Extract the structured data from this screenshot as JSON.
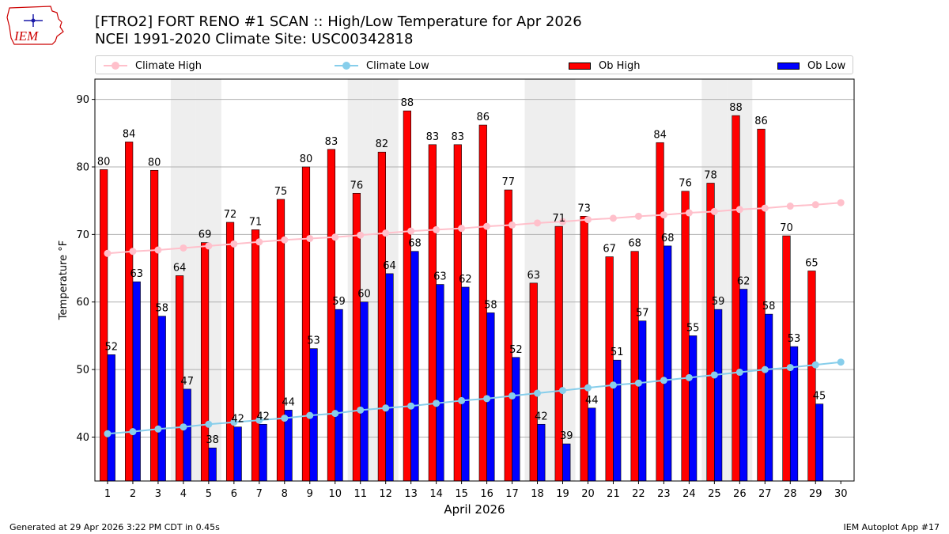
{
  "header": {
    "title_line1": "[FTRO2] FORT RENO #1 SCAN :: High/Low Temperature for Apr 2026",
    "title_line2": "NCEI 1991-2020 Climate Site: USC00342818",
    "logo_text": "IEM"
  },
  "footer": {
    "left": "Generated at 29 Apr 2026 3:22 PM CDT in 0.45s",
    "right": "IEM Autoplot App #17"
  },
  "colors": {
    "ob_high": "#ff0000",
    "ob_low": "#0000ff",
    "climate_high": "#ffc0cb",
    "climate_low": "#87ceeb",
    "weekend_shade": "#eeeeee",
    "grid": "#b0b0b0",
    "logo": "#cc0000"
  },
  "chart_data": {
    "type": "bar",
    "xlabel": "April 2026",
    "ylabel": "Temperature °F",
    "ylim": [
      33.5,
      93
    ],
    "yticks": [
      40,
      50,
      60,
      70,
      80,
      90
    ],
    "grid": "horizontal",
    "legend_position": "top",
    "weekend_shading_days": [
      4,
      5,
      11,
      12,
      18,
      19,
      25,
      26
    ],
    "categories": [
      "1",
      "2",
      "3",
      "4",
      "5",
      "6",
      "7",
      "8",
      "9",
      "10",
      "11",
      "12",
      "13",
      "14",
      "15",
      "16",
      "17",
      "18",
      "19",
      "20",
      "21",
      "22",
      "23",
      "24",
      "25",
      "26",
      "27",
      "28",
      "29",
      "30"
    ],
    "series": [
      {
        "name": "Climate High",
        "kind": "line",
        "values": [
          67.2,
          67.5,
          67.7,
          68.0,
          68.3,
          68.6,
          68.9,
          69.2,
          69.4,
          69.6,
          69.9,
          70.2,
          70.5,
          70.7,
          70.9,
          71.2,
          71.4,
          71.7,
          71.9,
          72.2,
          72.4,
          72.7,
          72.9,
          73.2,
          73.4,
          73.7,
          73.9,
          74.2,
          74.4,
          74.7
        ]
      },
      {
        "name": "Climate Low",
        "kind": "line",
        "values": [
          40.5,
          40.8,
          41.2,
          41.5,
          41.9,
          42.2,
          42.5,
          42.8,
          43.2,
          43.5,
          44.0,
          44.3,
          44.6,
          45.0,
          45.4,
          45.7,
          46.1,
          46.5,
          46.9,
          47.3,
          47.7,
          48.0,
          48.4,
          48.8,
          49.2,
          49.6,
          50.0,
          50.3,
          50.7,
          51.1
        ]
      },
      {
        "name": "Ob High",
        "kind": "bar",
        "values": [
          80,
          84,
          80,
          64,
          69,
          72,
          71,
          75,
          80,
          83,
          76,
          82,
          88,
          83,
          83,
          86,
          77,
          63,
          71,
          73,
          67,
          68,
          84,
          76,
          78,
          88,
          86,
          70,
          65,
          null
        ],
        "bar_values": [
          79.6,
          83.7,
          79.5,
          63.9,
          68.8,
          71.8,
          70.7,
          75.2,
          80.0,
          82.6,
          76.1,
          82.2,
          88.3,
          83.3,
          83.3,
          86.2,
          76.6,
          62.8,
          71.2,
          72.7,
          66.7,
          67.5,
          83.6,
          76.4,
          77.6,
          87.6,
          85.6,
          69.8,
          64.6,
          null
        ]
      },
      {
        "name": "Ob Low",
        "kind": "bar",
        "values": [
          52,
          63,
          58,
          47,
          38,
          42,
          42,
          44,
          53,
          59,
          60,
          64,
          68,
          63,
          62,
          58,
          52,
          42,
          39,
          44,
          51,
          57,
          68,
          55,
          59,
          62,
          58,
          53,
          45,
          null
        ],
        "bar_values": [
          52.2,
          63.0,
          57.9,
          47.1,
          38.4,
          41.5,
          41.9,
          44.0,
          53.1,
          58.9,
          60.0,
          64.2,
          67.5,
          62.6,
          62.2,
          58.4,
          51.8,
          41.9,
          39.0,
          44.3,
          51.4,
          57.2,
          68.3,
          55.0,
          58.9,
          61.9,
          58.2,
          53.4,
          44.9,
          null
        ]
      }
    ]
  }
}
